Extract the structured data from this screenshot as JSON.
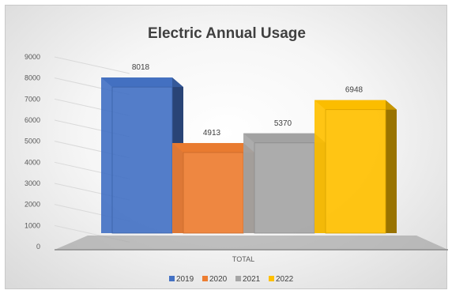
{
  "chart_data": {
    "type": "bar",
    "title": "Electric Annual Usage",
    "categories": [
      "TOTAL"
    ],
    "series": [
      {
        "name": "2019",
        "values": [
          8018
        ],
        "color": "#4472C4"
      },
      {
        "name": "2020",
        "values": [
          4913
        ],
        "color": "#ED7D31"
      },
      {
        "name": "2021",
        "values": [
          5370
        ],
        "color": "#A5A5A5"
      },
      {
        "name": "2022",
        "values": [
          6948
        ],
        "color": "#FFC000"
      }
    ],
    "data_labels": [
      "8018",
      "4913",
      "5370",
      "6948"
    ],
    "ylim": [
      0,
      9000
    ],
    "yticks": [
      "0",
      "1000",
      "2000",
      "3000",
      "4000",
      "5000",
      "6000",
      "7000",
      "8000",
      "9000"
    ],
    "grid": true,
    "legend_position": "bottom",
    "style": "3d-column"
  }
}
